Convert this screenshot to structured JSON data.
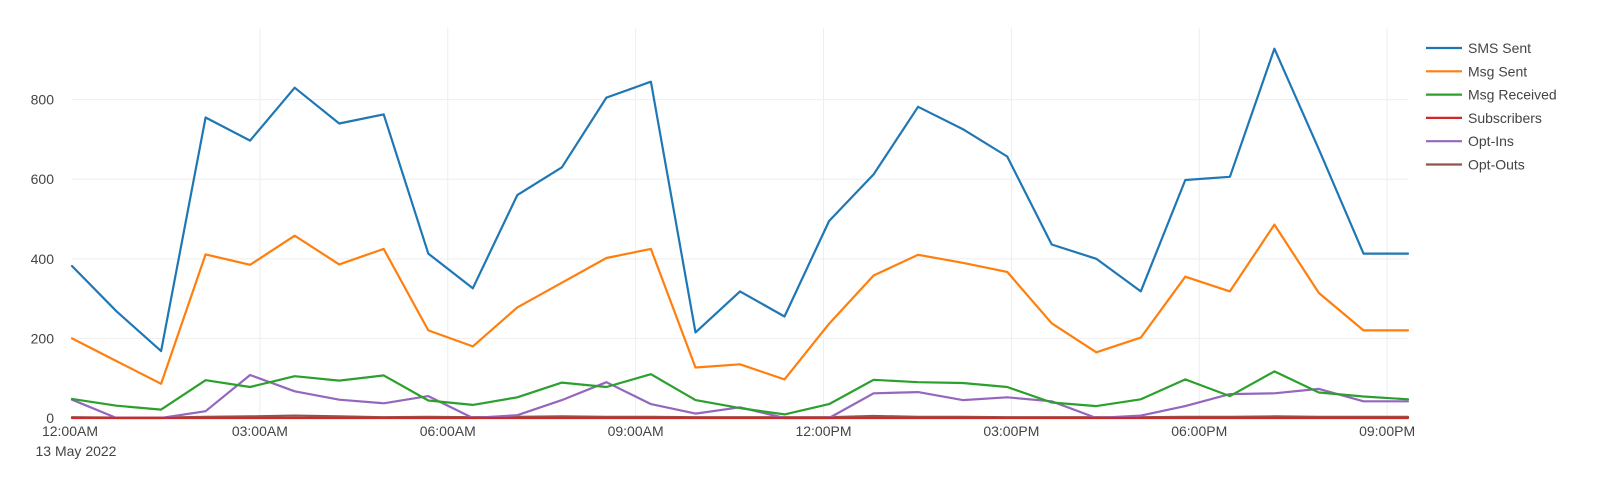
{
  "chart_data": {
    "type": "line",
    "title": "",
    "xlabel": "",
    "ylabel": "",
    "x": [
      "12:00AM",
      "12:42AM",
      "01:25AM",
      "02:08AM",
      "02:50AM",
      "03:33AM",
      "04:16AM",
      "04:58AM",
      "05:41AM",
      "06:24AM",
      "07:06AM",
      "07:49AM",
      "08:32AM",
      "09:14AM",
      "09:57AM",
      "10:40AM",
      "11:22AM",
      "12:05PM",
      "12:48PM",
      "01:30PM",
      "02:13PM",
      "02:56PM",
      "03:38PM",
      "04:21PM",
      "05:04PM",
      "05:46PM",
      "06:29PM",
      "07:12PM",
      "07:54PM",
      "08:37PM",
      "09:20PM"
    ],
    "x_start_label": "12:00AM",
    "x_date_label": "13 May 2022",
    "x_ticks": [
      "12:00AM",
      "03:00AM",
      "06:00AM",
      "09:00AM",
      "12:00PM",
      "03:00PM",
      "06:00PM",
      "09:00PM"
    ],
    "y_ticks": [
      0,
      200,
      400,
      600,
      800
    ],
    "ylim": [
      0,
      980
    ],
    "grid": true,
    "legend_position": "top-right",
    "series": [
      {
        "name": "SMS Sent",
        "color": "#1f77b4",
        "values": [
          382,
          268,
          168,
          755,
          697,
          830,
          740,
          763,
          413,
          326,
          560,
          630,
          805,
          845,
          215,
          318,
          255,
          495,
          612,
          782,
          726,
          657,
          436,
          400,
          318,
          598,
          606,
          928,
          675,
          413,
          413
        ]
      },
      {
        "name": "Msg Sent",
        "color": "#ff7f0e",
        "values": [
          200,
          143,
          86,
          411,
          385,
          458,
          386,
          425,
          220,
          180,
          278,
          340,
          402,
          425,
          127,
          135,
          97,
          237,
          358,
          410,
          390,
          367,
          238,
          165,
          202,
          355,
          318,
          486,
          314,
          220,
          220
        ]
      },
      {
        "name": "Msg Received",
        "color": "#2ca02c",
        "values": [
          48,
          31,
          21,
          95,
          78,
          105,
          94,
          107,
          44,
          33,
          52,
          89,
          78,
          110,
          45,
          25,
          9,
          35,
          96,
          90,
          88,
          78,
          39,
          30,
          47,
          97,
          55,
          117,
          64,
          54,
          47
        ]
      },
      {
        "name": "Subscribers",
        "color": "#d62728",
        "values": [
          0,
          0,
          0,
          0,
          0,
          0,
          0,
          0,
          0,
          0,
          0,
          0,
          0,
          0,
          0,
          0,
          0,
          0,
          0,
          0,
          0,
          0,
          0,
          0,
          0,
          0,
          0,
          0,
          0,
          0,
          0
        ]
      },
      {
        "name": "Opt-Ins",
        "color": "#9467bd",
        "values": [
          46,
          0,
          0,
          17,
          108,
          67,
          46,
          37,
          55,
          0,
          7,
          45,
          90,
          35,
          11,
          27,
          0,
          0,
          62,
          65,
          45,
          52,
          42,
          0,
          6,
          30,
          60,
          62,
          73,
          42,
          42
        ]
      },
      {
        "name": "Opt-Outs",
        "color": "#8c564b",
        "values": [
          2,
          1,
          1,
          3,
          4,
          6,
          4,
          2,
          3,
          2,
          3,
          4,
          3,
          3,
          2,
          2,
          2,
          2,
          5,
          3,
          3,
          2,
          2,
          2,
          2,
          3,
          3,
          4,
          3,
          3,
          3
        ]
      }
    ]
  }
}
